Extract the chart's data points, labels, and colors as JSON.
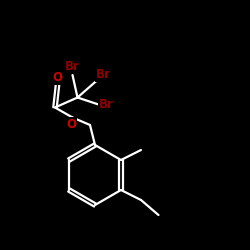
{
  "background_color": "#000000",
  "bond_color": "#ffffff",
  "atom_colors": {
    "O": "#cc0000",
    "Br": "#8b0000"
  },
  "br_color": "#8b0000",
  "o_color": "#cc0000",
  "lw": 1.6,
  "fontsize_br": 8.5,
  "fontsize_o": 8.5
}
